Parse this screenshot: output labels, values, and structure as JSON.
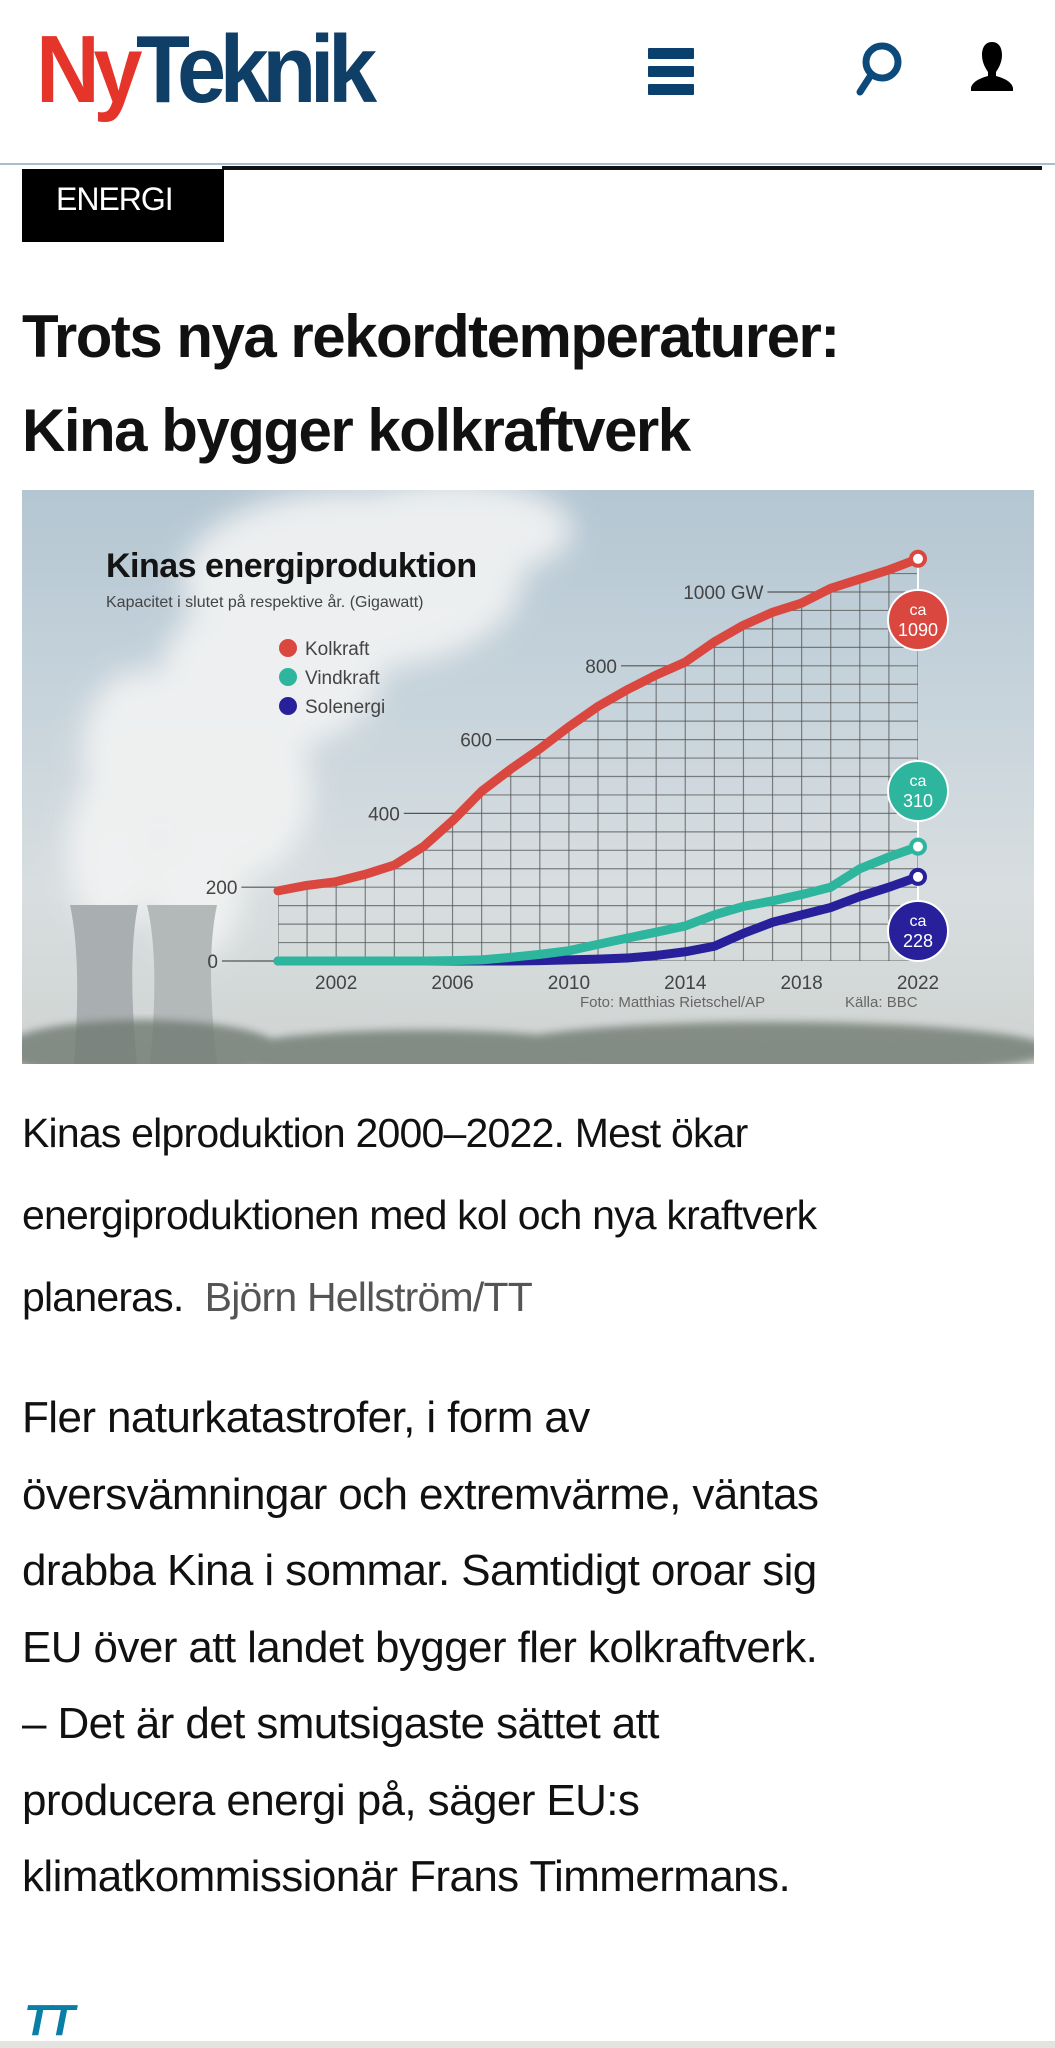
{
  "header": {
    "logo": {
      "part1": "Ny",
      "part2": "Teknik"
    },
    "icons": {
      "menu": "hamburger-menu-icon",
      "search": "search-icon",
      "user": "user-icon"
    },
    "colors": {
      "logo_red": "#e5352a",
      "logo_blue": "#0f3f66"
    }
  },
  "article": {
    "category": "ENERGI",
    "headline_lines": [
      "Trots nya rekordtemperaturer:",
      "Kina bygger kolkraftverk"
    ],
    "caption": "Kinas elproduktion 2000–2022. Mest ökar energiproduktionen med kol och nya kraftverk planeras.",
    "caption_credit": "Björn Hellström/TT",
    "body_paragraphs": [
      [
        "Fler naturkatastrofer, i form av",
        "översvämningar och extremvärme, väntas",
        "drabba Kina i sommar. Samtidigt oroar sig",
        "EU över att landet bygger fler kolkraftverk."
      ],
      [
        "– Det är det smutsigaste sättet att",
        "producera energi på, säger EU:s",
        "klimatkommissionär Frans Timmermans."
      ]
    ],
    "source_logo": "TT"
  },
  "chart_data": {
    "type": "line",
    "title": "Kinas energiproduktion",
    "subtitle": "Kapacitet i slutet på respektive år. (Gigawatt)",
    "ylabel": "",
    "xlabel": "",
    "xlim": [
      2000,
      2022
    ],
    "ylim": [
      0,
      1100
    ],
    "x_ticks": [
      "2002",
      "2006",
      "2010",
      "2014",
      "2018",
      "2022"
    ],
    "y_ticks": [
      {
        "value": 0,
        "label": "0"
      },
      {
        "value": 200,
        "label": "200"
      },
      {
        "value": 400,
        "label": "400"
      },
      {
        "value": 600,
        "label": "600"
      },
      {
        "value": 800,
        "label": "800"
      },
      {
        "value": 1000,
        "label": "1000 GW"
      }
    ],
    "grid": true,
    "legend_placement": "top-left",
    "x": [
      2000,
      2001,
      2002,
      2003,
      2004,
      2005,
      2006,
      2007,
      2008,
      2009,
      2010,
      2011,
      2012,
      2013,
      2014,
      2015,
      2016,
      2017,
      2018,
      2019,
      2020,
      2021,
      2022
    ],
    "series": [
      {
        "name": "Kolkraft",
        "color": "#d9473f",
        "values": [
          190,
          205,
          215,
          235,
          260,
          310,
          380,
          460,
          520,
          575,
          635,
          690,
          735,
          775,
          810,
          865,
          910,
          945,
          970,
          1010,
          1035,
          1060,
          1090
        ],
        "end_label": [
          "ca",
          "1090"
        ]
      },
      {
        "name": "Vindkraft",
        "color": "#2db59e",
        "values": [
          0,
          0,
          0,
          0,
          0,
          0,
          1,
          3,
          10,
          18,
          28,
          45,
          62,
          78,
          95,
          125,
          148,
          163,
          180,
          200,
          250,
          282,
          310
        ],
        "end_label": [
          "ca",
          "310"
        ]
      },
      {
        "name": "Solenergi",
        "color": "#27209a",
        "values": [
          0,
          0,
          0,
          0,
          0,
          0,
          0,
          0,
          0,
          1,
          3,
          5,
          8,
          15,
          25,
          40,
          75,
          105,
          125,
          145,
          175,
          200,
          228
        ],
        "end_label": [
          "ca",
          "228"
        ]
      }
    ],
    "photo_credit": "Foto:  Matthias Rietschel/AP",
    "source": "Källa: BBC"
  }
}
